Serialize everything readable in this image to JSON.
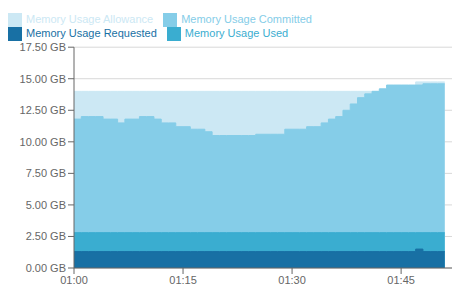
{
  "chart_data": {
    "type": "area",
    "line_style": "step",
    "grid": true,
    "legend": "upper left",
    "x": [
      0,
      1,
      2,
      3,
      4,
      5,
      6,
      7,
      8,
      9,
      10,
      11,
      12,
      13,
      14,
      15,
      16,
      17,
      18,
      19,
      20,
      21,
      22,
      23,
      24,
      25,
      26,
      27,
      28,
      29,
      30,
      31,
      32,
      33,
      34,
      35,
      36,
      37,
      38,
      39,
      40,
      41,
      42,
      43,
      44,
      45,
      46,
      47,
      48,
      49,
      50,
      51
    ],
    "xlim": [
      0,
      52
    ],
    "xticks": [
      {
        "value": 0,
        "label": "01:00"
      },
      {
        "value": 15,
        "label": "01:15"
      },
      {
        "value": 30,
        "label": "01:30"
      },
      {
        "value": 45,
        "label": "01:45"
      }
    ],
    "ylim": [
      0,
      17.5
    ],
    "yticks": [
      {
        "value": 0,
        "label": "0.00 GB"
      },
      {
        "value": 2.5,
        "label": "2.50 GB"
      },
      {
        "value": 5.0,
        "label": "5.00 GB"
      },
      {
        "value": 7.5,
        "label": "7.50 GB"
      },
      {
        "value": 10.0,
        "label": "10.00 GB"
      },
      {
        "value": 12.5,
        "label": "12.50 GB"
      },
      {
        "value": 15.0,
        "label": "15.00 GB"
      },
      {
        "value": 17.5,
        "label": "17.50 GB"
      }
    ],
    "series": [
      {
        "name": "Memory Usage Allowance",
        "color": "#cce8f4",
        "values": [
          14.0,
          14.0,
          14.0,
          14.0,
          14.0,
          14.0,
          14.0,
          14.0,
          14.0,
          14.0,
          14.0,
          14.0,
          14.0,
          14.0,
          14.0,
          14.0,
          14.0,
          14.0,
          14.0,
          14.0,
          14.0,
          14.0,
          14.0,
          14.0,
          14.0,
          14.0,
          14.0,
          14.0,
          14.0,
          14.0,
          14.0,
          14.0,
          14.0,
          14.0,
          14.0,
          14.0,
          14.0,
          14.0,
          14.0,
          14.0,
          14.0,
          14.0,
          14.0,
          14.0,
          14.0,
          14.0,
          14.0,
          14.75,
          14.75,
          14.75,
          14.75,
          14.75
        ]
      },
      {
        "name": "Memory Usage Committed",
        "color": "#85cde8",
        "values": [
          11.8,
          12.0,
          12.0,
          12.0,
          11.8,
          11.8,
          11.5,
          11.8,
          11.8,
          12.0,
          12.0,
          11.8,
          11.5,
          11.5,
          11.2,
          11.2,
          11.0,
          11.0,
          10.8,
          10.5,
          10.5,
          10.5,
          10.5,
          10.5,
          10.5,
          10.6,
          10.6,
          10.6,
          10.6,
          11.0,
          11.0,
          11.0,
          11.2,
          11.2,
          11.5,
          11.8,
          12.0,
          12.5,
          13.0,
          13.5,
          13.8,
          14.0,
          14.2,
          14.5,
          14.5,
          14.5,
          14.5,
          14.5,
          14.6,
          14.6,
          14.6,
          14.6
        ]
      },
      {
        "name": "Memory Usage Used",
        "color": "#3aadd0",
        "values": [
          2.8,
          2.8,
          2.8,
          2.8,
          2.8,
          2.8,
          2.8,
          2.8,
          2.8,
          2.8,
          2.8,
          2.8,
          2.8,
          2.8,
          2.8,
          2.8,
          2.8,
          2.8,
          2.8,
          2.8,
          2.8,
          2.8,
          2.8,
          2.8,
          2.8,
          2.8,
          2.8,
          2.8,
          2.8,
          2.8,
          2.8,
          2.8,
          2.8,
          2.8,
          2.8,
          2.8,
          2.8,
          2.8,
          2.8,
          2.8,
          2.8,
          2.8,
          2.8,
          2.8,
          2.8,
          2.8,
          2.8,
          2.8,
          2.8,
          2.8,
          2.8,
          2.8
        ]
      },
      {
        "name": "Memory Usage Requested",
        "color": "#1870a4",
        "values": [
          1.3,
          1.3,
          1.3,
          1.3,
          1.3,
          1.3,
          1.3,
          1.3,
          1.3,
          1.3,
          1.3,
          1.3,
          1.3,
          1.3,
          1.3,
          1.3,
          1.3,
          1.3,
          1.3,
          1.3,
          1.3,
          1.3,
          1.3,
          1.3,
          1.3,
          1.3,
          1.3,
          1.3,
          1.3,
          1.3,
          1.3,
          1.3,
          1.3,
          1.3,
          1.3,
          1.3,
          1.3,
          1.3,
          1.3,
          1.3,
          1.3,
          1.3,
          1.3,
          1.3,
          1.3,
          1.3,
          1.3,
          1.5,
          1.3,
          1.3,
          1.3,
          1.3
        ]
      }
    ]
  }
}
